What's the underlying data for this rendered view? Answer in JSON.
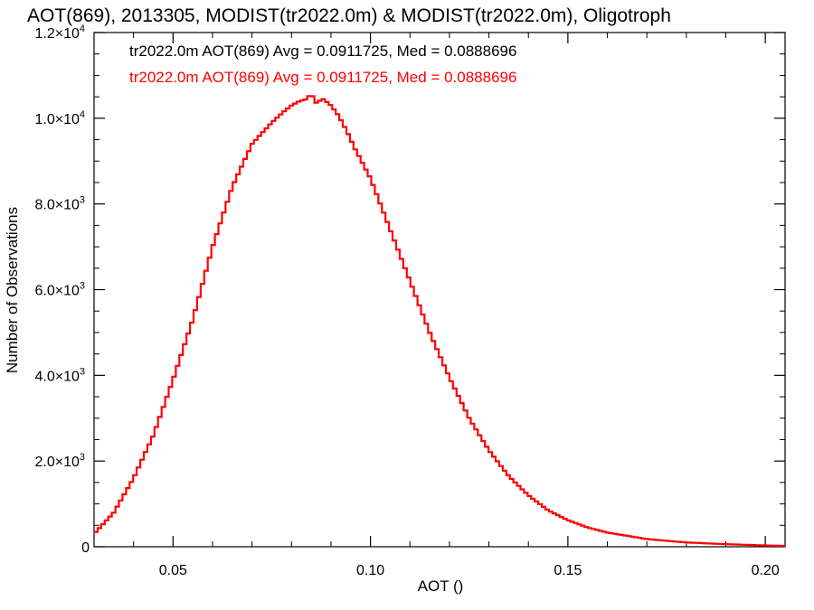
{
  "chart_data": {
    "type": "line",
    "title": "AOT(869), 2013305, MODIST(tr2022.0m) & MODIST(tr2022.0m), Oligotroph",
    "xlabel": "AOT ()",
    "ylabel": "Number of Observations",
    "xlim": [
      0.03,
      0.205
    ],
    "ylim": [
      0,
      12000
    ],
    "x_ticks": [
      {
        "value": 0.05,
        "label": "0.05"
      },
      {
        "value": 0.1,
        "label": "0.10"
      },
      {
        "value": 0.15,
        "label": "0.15"
      },
      {
        "value": 0.2,
        "label": "0.20"
      }
    ],
    "y_ticks": [
      {
        "value": 0,
        "mant": "0",
        "exp": ""
      },
      {
        "value": 2000,
        "mant": "2.0×10",
        "exp": "3"
      },
      {
        "value": 4000,
        "mant": "4.0×10",
        "exp": "3"
      },
      {
        "value": 6000,
        "mant": "6.0×10",
        "exp": "3"
      },
      {
        "value": 8000,
        "mant": "8.0×10",
        "exp": "3"
      },
      {
        "value": 10000,
        "mant": "1.0×10",
        "exp": "4"
      },
      {
        "value": 12000,
        "mant": "1.2×10",
        "exp": "4"
      }
    ],
    "annotations": [
      {
        "text": "tr2022.0m AOT(869) Avg = 0.0911725, Med = 0.0888696",
        "color": "#000000"
      },
      {
        "text": "tr2022.0m AOT(869) Avg = 0.0911725, Med = 0.0888696",
        "color": "#ff0000"
      }
    ],
    "grid": false,
    "series": [
      {
        "color": "#ff0000",
        "style": "step",
        "x": [
          0.03,
          0.035,
          0.04,
          0.045,
          0.05,
          0.055,
          0.06,
          0.065,
          0.07,
          0.075,
          0.078,
          0.08,
          0.082,
          0.084,
          0.085,
          0.086,
          0.088,
          0.09,
          0.092,
          0.094,
          0.096,
          0.098,
          0.1,
          0.105,
          0.11,
          0.115,
          0.12,
          0.125,
          0.13,
          0.135,
          0.14,
          0.145,
          0.15,
          0.155,
          0.16,
          0.17,
          0.18,
          0.19,
          0.2,
          0.205
        ],
        "y": [
          300,
          800,
          1600,
          2600,
          3900,
          5300,
          7000,
          8400,
          9400,
          9900,
          10150,
          10300,
          10400,
          10450,
          10600,
          10350,
          10450,
          10300,
          10050,
          9700,
          9300,
          8950,
          8600,
          7400,
          6200,
          5000,
          3950,
          3000,
          2250,
          1650,
          1200,
          850,
          620,
          450,
          330,
          180,
          100,
          60,
          30,
          20
        ]
      }
    ]
  }
}
